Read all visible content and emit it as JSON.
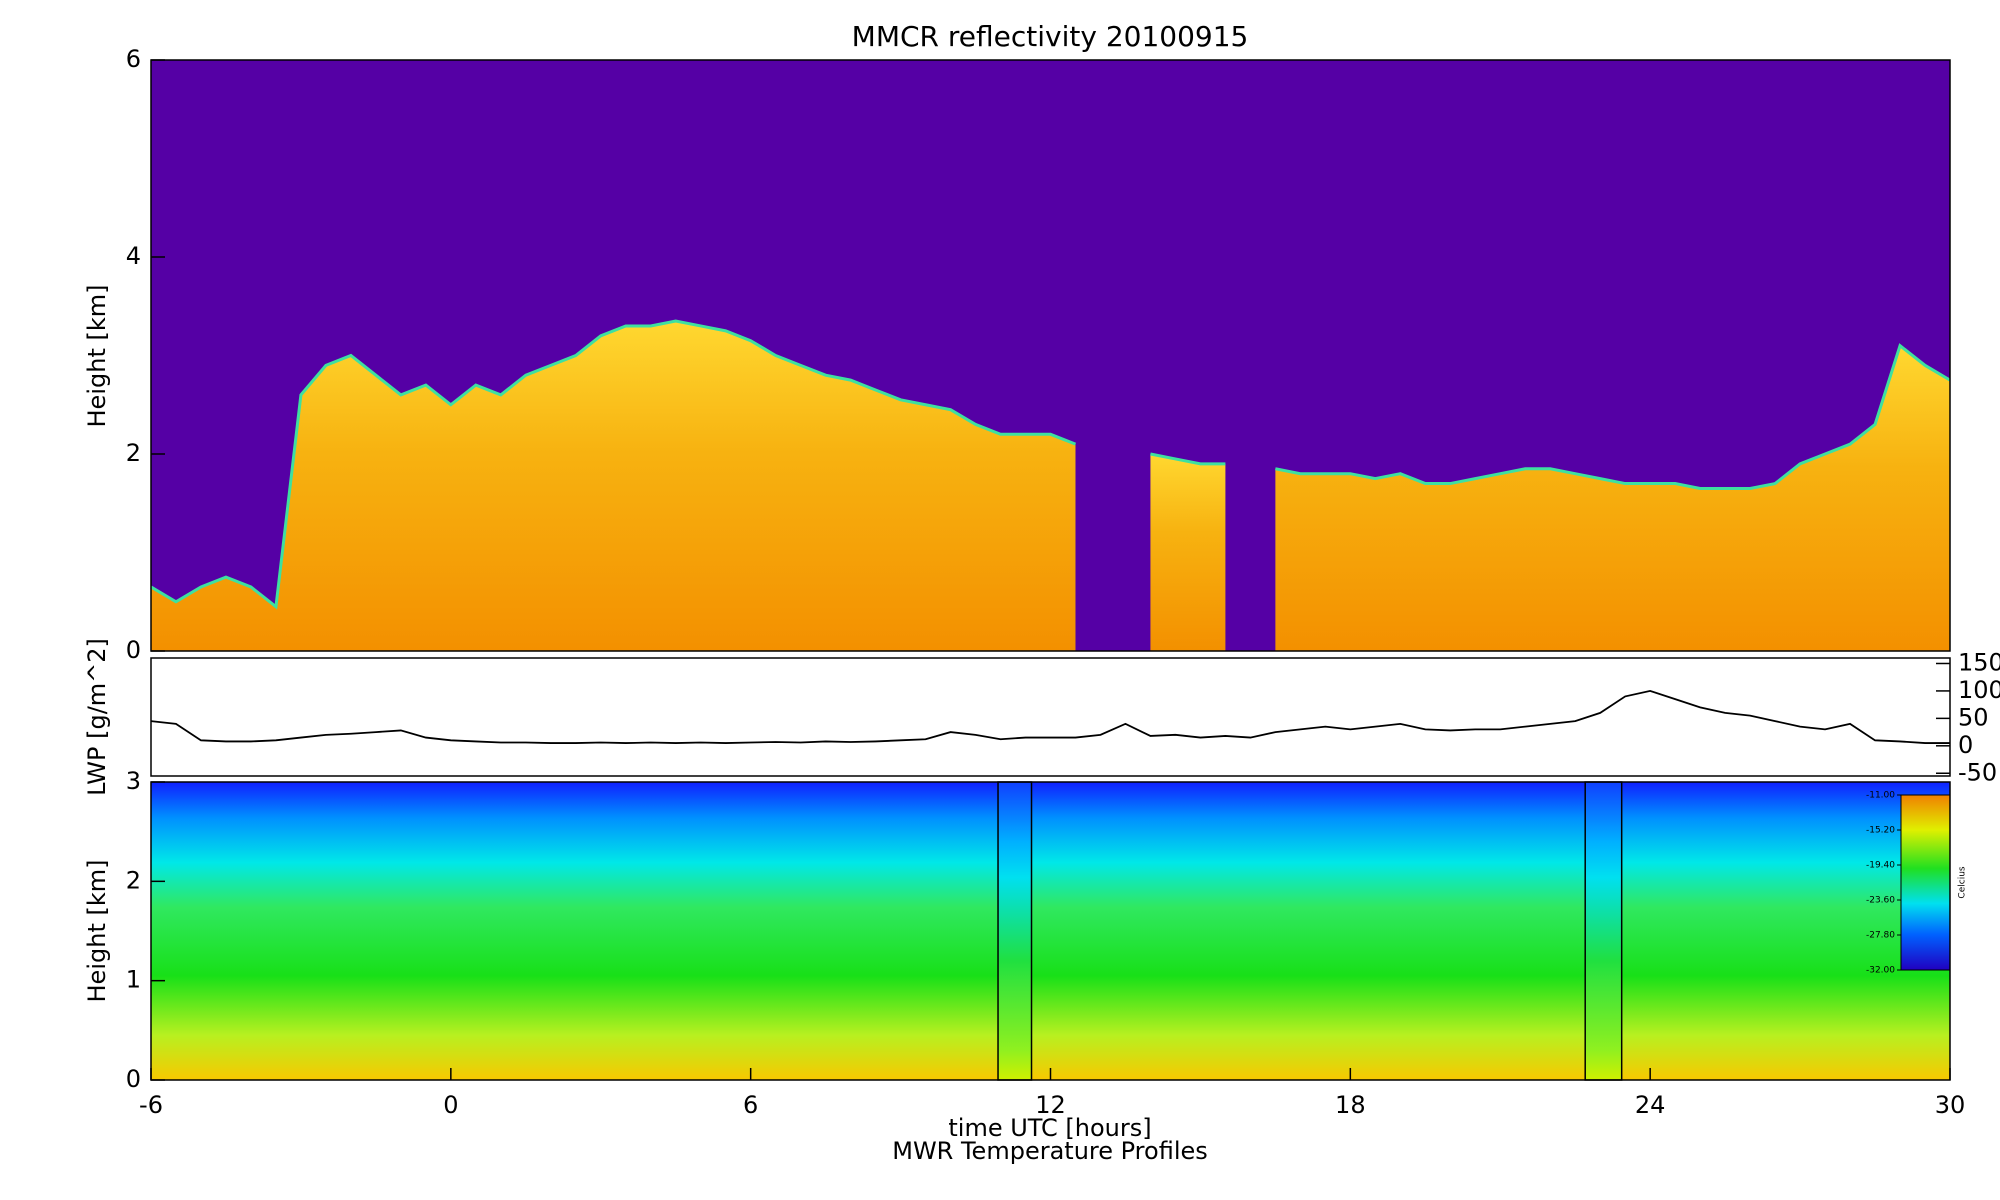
{
  "chart_data": [
    {
      "type": "area",
      "title": "MMCR reflectivity     20100915",
      "ylabel": "Height [km]",
      "xlim": [
        -6,
        30
      ],
      "ylim": [
        0,
        6
      ],
      "yticks": [
        0,
        2,
        4,
        6
      ],
      "background": "#5500a5",
      "color": "#f5a800",
      "edge_color": "#3ee0a0",
      "x": [
        -6,
        -5.5,
        -5,
        -4.5,
        -4,
        -3.5,
        -3,
        -2.5,
        -2,
        -1.5,
        -1,
        -0.5,
        0,
        0.5,
        1,
        1.5,
        2,
        2.5,
        3,
        3.5,
        4,
        4.5,
        5,
        5.5,
        6,
        6.5,
        7,
        7.5,
        8,
        8.5,
        9,
        9.5,
        10,
        10.5,
        11,
        11.5,
        12,
        12.5,
        13,
        13.5,
        14,
        14.5,
        15,
        15.5,
        16,
        16.5,
        17,
        17.5,
        18,
        18.5,
        19,
        19.5,
        20,
        20.5,
        21,
        21.5,
        22,
        22.5,
        23,
        23.5,
        24,
        24.5,
        25,
        25.5,
        26,
        26.5,
        27,
        27.5,
        28,
        28.5,
        29,
        29.5,
        30
      ],
      "values": [
        0.65,
        0.5,
        0.65,
        0.75,
        0.65,
        0.45,
        2.6,
        2.9,
        3.0,
        2.8,
        2.6,
        2.7,
        2.5,
        2.7,
        2.6,
        2.8,
        2.9,
        3.0,
        3.2,
        3.3,
        3.3,
        3.35,
        3.3,
        3.25,
        3.15,
        3.0,
        2.9,
        2.8,
        2.75,
        2.65,
        2.55,
        2.5,
        2.45,
        2.3,
        2.2,
        2.2,
        2.2,
        2.1,
        null,
        null,
        2.0,
        1.95,
        1.9,
        1.9,
        null,
        1.85,
        1.8,
        1.8,
        1.8,
        1.75,
        1.8,
        1.7,
        1.7,
        1.75,
        1.8,
        1.85,
        1.85,
        1.8,
        1.75,
        1.7,
        1.7,
        1.7,
        1.65,
        1.65,
        1.65,
        1.7,
        1.9,
        2.0,
        2.1,
        2.3,
        3.1,
        2.9,
        2.75
      ]
    },
    {
      "type": "line",
      "ylabel": "LWP [g/m^2]",
      "xlim": [
        -6,
        30
      ],
      "ylim": [
        -55,
        160
      ],
      "yticks": [
        -50,
        0,
        50,
        100,
        150
      ],
      "ytick_side": "right",
      "color": "#000000",
      "x": [
        -6,
        -5.5,
        -5,
        -4.5,
        -4,
        -3.5,
        -3,
        -2.5,
        -2,
        -1.5,
        -1,
        -0.5,
        0,
        0.5,
        1,
        1.5,
        2,
        2.5,
        3,
        3.5,
        4,
        4.5,
        5,
        5.5,
        6,
        6.5,
        7,
        7.5,
        8,
        8.5,
        9,
        9.5,
        10,
        10.5,
        11,
        11.5,
        12,
        12.5,
        13,
        13.5,
        14,
        14.5,
        15,
        15.5,
        16,
        16.5,
        17,
        17.5,
        18,
        18.5,
        19,
        19.5,
        20,
        20.5,
        21,
        21.5,
        22,
        22.5,
        23,
        23.5,
        24,
        24.5,
        25,
        25.5,
        26,
        26.5,
        27,
        27.5,
        28,
        28.5,
        29,
        29.5,
        30
      ],
      "values": [
        45,
        40,
        10,
        8,
        8,
        10,
        15,
        20,
        22,
        25,
        28,
        15,
        10,
        8,
        6,
        6,
        5,
        5,
        6,
        5,
        6,
        5,
        6,
        5,
        6,
        7,
        6,
        8,
        7,
        8,
        10,
        12,
        25,
        20,
        12,
        15,
        15,
        15,
        20,
        40,
        18,
        20,
        15,
        18,
        15,
        25,
        30,
        35,
        30,
        35,
        40,
        30,
        28,
        30,
        30,
        35,
        40,
        45,
        60,
        90,
        100,
        85,
        70,
        60,
        55,
        45,
        35,
        30,
        40,
        10,
        8,
        5,
        5
      ]
    },
    {
      "type": "heatmap",
      "ylabel": "Height [km]",
      "xlabel": "time UTC [hours]",
      "caption": "MWR Temperature Profiles",
      "xlim": [
        -6,
        30
      ],
      "xticks": [
        -6,
        0,
        6,
        12,
        18,
        24,
        30
      ],
      "ylim": [
        0,
        3
      ],
      "yticks": [
        0,
        1,
        2,
        3
      ],
      "gaps": [
        [
          10.95,
          11.62
        ],
        [
          22.7,
          23.43
        ]
      ],
      "colorbar": {
        "label": "Celcius",
        "range": [
          -32,
          -11
        ],
        "ticks": [
          {
            "value": -11,
            "label": "-11.00"
          },
          {
            "value": -15.2,
            "label": "-15.20"
          },
          {
            "value": -19.4,
            "label": "-19.40"
          },
          {
            "value": -23.6,
            "label": "-23.60"
          },
          {
            "value": -27.8,
            "label": "-27.80"
          },
          {
            "value": -32,
            "label": "-32.00"
          }
        ]
      }
    }
  ]
}
